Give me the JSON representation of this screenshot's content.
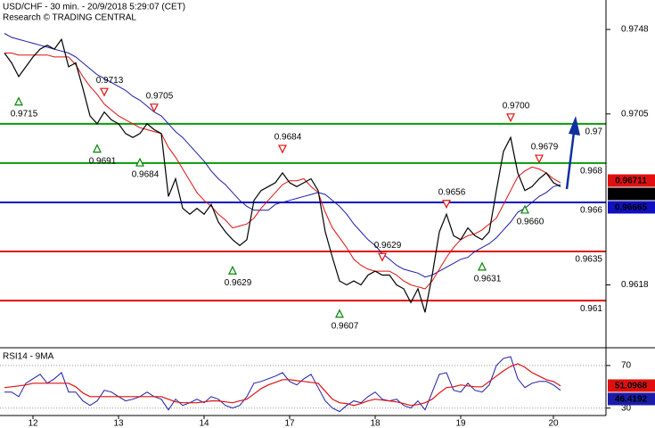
{
  "chart_data": [
    {
      "type": "line",
      "title": "USD/CHF - 30 min. - 20/9/2018 5:29:07 (CET)",
      "subtitle": "Research © TRADING CENTRAL",
      "categories": [
        null,
        null,
        null,
        null,
        "12",
        null,
        null,
        null,
        null,
        null,
        null,
        null,
        null,
        null,
        null,
        null,
        "13",
        null,
        null,
        null,
        null,
        null,
        null,
        null,
        null,
        null,
        null,
        null,
        "14",
        null,
        null,
        null,
        null,
        null,
        null,
        null,
        null,
        null,
        null,
        null,
        "17",
        null,
        null,
        null,
        null,
        null,
        null,
        null,
        null,
        null,
        null,
        null,
        "18",
        null,
        null,
        null,
        null,
        null,
        null,
        null,
        null,
        null,
        null,
        null,
        "19",
        null,
        null,
        null,
        null,
        null,
        null,
        null,
        null,
        null,
        null,
        null,
        null,
        "20",
        null
      ],
      "series": [
        {
          "color": "#1c1ca8",
          "values": [
            0.9746,
            0.9744,
            0.9743,
            0.9742,
            0.9741,
            0.974,
            0.9739,
            0.9738,
            0.9737,
            0.9736,
            0.9734,
            0.9731,
            0.9728,
            0.9725,
            0.9723,
            0.9721,
            0.9719,
            0.9717,
            0.9714,
            0.9712,
            0.9709,
            0.9706,
            0.9704,
            0.97,
            0.9696,
            0.9693,
            0.9689,
            0.9685,
            0.9681,
            0.9676,
            0.9672,
            0.9669,
            0.9665,
            0.9661,
            0.9658,
            0.9656,
            0.9656,
            0.9656,
            0.9659,
            0.966,
            0.9661,
            0.9662,
            0.9663,
            0.9664,
            0.9665,
            0.9664,
            0.9661,
            0.9658,
            0.9654,
            0.9649,
            0.9645,
            0.9641,
            0.9638,
            0.9634,
            0.9631,
            0.9628,
            0.9626,
            0.9625,
            0.9624,
            0.9622,
            0.9623,
            0.9625,
            0.9627,
            0.9629,
            0.9631,
            0.9632,
            0.9635,
            0.9637,
            0.9639,
            0.9642,
            0.9646,
            0.965,
            0.9655,
            0.9657,
            0.966,
            0.9663,
            0.9665,
            0.9668,
            0.9669
          ]
        },
        {
          "color": "#e01010",
          "values": [
            0.9736,
            0.9736,
            0.9735,
            0.9735,
            0.9735,
            0.9735,
            0.9735,
            0.9734,
            0.9734,
            0.9734,
            0.973,
            0.9724,
            0.9719,
            0.9715,
            0.971,
            0.9707,
            0.9704,
            0.9702,
            0.97,
            0.9698,
            0.9697,
            0.9696,
            0.9695,
            0.9688,
            0.9683,
            0.9677,
            0.9671,
            0.9665,
            0.9661,
            0.9658,
            0.9654,
            0.9651,
            0.9647,
            0.9648,
            0.9649,
            0.9652,
            0.9657,
            0.9661,
            0.9665,
            0.9669,
            0.9671,
            0.9671,
            0.9672,
            0.9668,
            0.9665,
            0.9655,
            0.9647,
            0.9642,
            0.9637,
            0.9631,
            0.9628,
            0.9626,
            0.9625,
            0.9625,
            0.9625,
            0.9623,
            0.962,
            0.9618,
            0.9617,
            0.9616,
            0.962,
            0.9626,
            0.9632,
            0.9637,
            0.9641,
            0.9643,
            0.9644,
            0.9646,
            0.9649,
            0.9652,
            0.9659,
            0.9666,
            0.9673,
            0.9676,
            0.9678,
            0.9677,
            0.9675,
            0.9672,
            0.967
          ]
        },
        {
          "color": "#000000",
          "values": [
            0.9736,
            0.9731,
            0.9724,
            0.9729,
            0.9734,
            0.9738,
            0.974,
            0.9738,
            0.9743,
            0.9729,
            0.9731,
            0.9718,
            0.9704,
            0.97,
            0.9706,
            0.9702,
            0.97,
            0.9695,
            0.9693,
            0.9695,
            0.97,
            0.9697,
            0.9695,
            0.9663,
            0.9672,
            0.9657,
            0.9654,
            0.9657,
            0.9654,
            0.9659,
            0.965,
            0.9645,
            0.9641,
            0.9638,
            0.9641,
            0.9661,
            0.9666,
            0.9668,
            0.967,
            0.9675,
            0.967,
            0.9668,
            0.967,
            0.9672,
            0.9666,
            0.9645,
            0.9632,
            0.962,
            0.9618,
            0.962,
            0.9618,
            0.9623,
            0.9625,
            0.9623,
            0.9623,
            0.9618,
            0.9616,
            0.9609,
            0.9616,
            0.9604,
            0.9623,
            0.9645,
            0.9654,
            0.9643,
            0.9641,
            0.9647,
            0.9643,
            0.9641,
            0.9645,
            0.9666,
            0.9686,
            0.9693,
            0.9675,
            0.9666,
            0.9668,
            0.9672,
            0.9675,
            0.967,
            0.9668
          ]
        }
      ],
      "ylim": [
        0.9586,
        0.9763
      ],
      "yticks": [
        0.9748,
        0.9705,
        0.9618
      ],
      "levels": [
        {
          "value": 0.97,
          "color": "#0a9a0a"
        },
        {
          "value": 0.968,
          "color": "#0a9a0a"
        },
        {
          "value": 0.966,
          "color": "#1010c0"
        },
        {
          "value": 0.9635,
          "color": "#e01010"
        },
        {
          "value": 0.961,
          "color": "#e01010"
        }
      ],
      "high_color": "#e01010",
      "low_color": "#008800",
      "highs": [
        null,
        null,
        null,
        null,
        null,
        null,
        null,
        null,
        null,
        null,
        null,
        null,
        null,
        null,
        0.9713,
        null,
        null,
        null,
        null,
        null,
        null,
        0.9705,
        null,
        null,
        null,
        null,
        null,
        null,
        null,
        null,
        null,
        null,
        null,
        null,
        null,
        null,
        null,
        null,
        null,
        0.9684,
        null,
        null,
        null,
        null,
        null,
        null,
        null,
        null,
        null,
        null,
        null,
        null,
        null,
        0.9629,
        null,
        null,
        null,
        null,
        null,
        null,
        null,
        null,
        0.9656,
        null,
        null,
        null,
        null,
        null,
        null,
        null,
        null,
        {
          "value": 0.97,
          "label": "0.9700"
        },
        null,
        null,
        null,
        0.9679,
        null,
        null,
        null
      ],
      "lows": [
        null,
        null,
        0.9715,
        null,
        null,
        null,
        null,
        null,
        null,
        null,
        null,
        null,
        null,
        0.9691,
        null,
        null,
        null,
        null,
        null,
        0.9684,
        null,
        null,
        null,
        null,
        null,
        null,
        null,
        null,
        null,
        null,
        null,
        null,
        0.9629,
        null,
        null,
        null,
        null,
        null,
        null,
        null,
        null,
        null,
        null,
        null,
        null,
        null,
        null,
        0.9607,
        null,
        null,
        null,
        null,
        null,
        null,
        null,
        null,
        null,
        null,
        null,
        null,
        null,
        null,
        null,
        null,
        null,
        null,
        null,
        0.9631,
        null,
        null,
        null,
        null,
        null,
        {
          "value": 0.966,
          "label": "0.9660"
        },
        null,
        null,
        null,
        null,
        null
      ],
      "last_values": [
        {
          "value": 0.96711,
          "color": "#e01010"
        },
        {
          "value": 0.96683,
          "color": "#000000"
        },
        {
          "value": 0.96665,
          "color": "#1010c0"
        }
      ]
    },
    {
      "type": "line",
      "title": "RSI14 - 9MA",
      "series": [
        {
          "color": "#1c1ca8",
          "values": [
            45,
            45,
            40.8,
            53.3,
            57.5,
            61.7,
            53.3,
            57.5,
            63.3,
            45,
            45,
            36.7,
            32.5,
            36.7,
            46.7,
            45,
            40.8,
            36.7,
            38.3,
            40.8,
            45,
            40.8,
            38.3,
            28.3,
            38.3,
            32.5,
            35,
            38.3,
            35,
            40.8,
            38.3,
            32.5,
            30,
            32.5,
            40.8,
            53.3,
            55,
            57.5,
            60,
            63.3,
            55,
            51.7,
            57.5,
            61.7,
            49.2,
            36.7,
            30,
            26.7,
            32.5,
            36.7,
            35,
            40.8,
            45,
            38.3,
            36.7,
            38.3,
            32.5,
            30,
            36.7,
            28.3,
            45,
            61.7,
            63.3,
            46.7,
            45,
            53.3,
            46.7,
            45,
            51.7,
            70,
            76.7,
            78.3,
            57.5,
            49.2,
            53.3,
            55,
            55,
            51.7,
            46.7
          ]
        },
        {
          "color": "#e01010",
          "values": [
            49.2,
            50,
            50.8,
            51.7,
            53.3,
            53.3,
            53.3,
            53.3,
            53.3,
            53.3,
            50,
            44.2,
            40.8,
            40.8,
            40.8,
            40.8,
            40.8,
            40.8,
            40.8,
            40.8,
            40.8,
            40.8,
            40.8,
            38.3,
            35.8,
            35,
            35,
            35,
            35.8,
            36.7,
            36.7,
            35.8,
            35,
            36.7,
            38.3,
            43.3,
            48.3,
            51.7,
            54.2,
            56.7,
            56.7,
            55.8,
            55,
            54.2,
            53.3,
            45.8,
            38.3,
            35,
            34.2,
            32.5,
            34.2,
            36.7,
            38.3,
            37.5,
            36.7,
            35.8,
            34.2,
            32.5,
            33.3,
            35,
            38.3,
            44.2,
            49.2,
            50,
            51.7,
            50.8,
            50,
            50,
            55,
            60,
            65,
            69.2,
            71.7,
            68.3,
            63.3,
            60,
            56.7,
            55,
            50.8
          ]
        }
      ],
      "ylim": [
        23,
        85
      ],
      "yticks": [
        70,
        30
      ],
      "grid": true,
      "last_values": [
        {
          "value": 51.0968,
          "color": "#e01010"
        },
        {
          "value": 46.4192,
          "color": "#1c1ca8"
        }
      ]
    }
  ]
}
